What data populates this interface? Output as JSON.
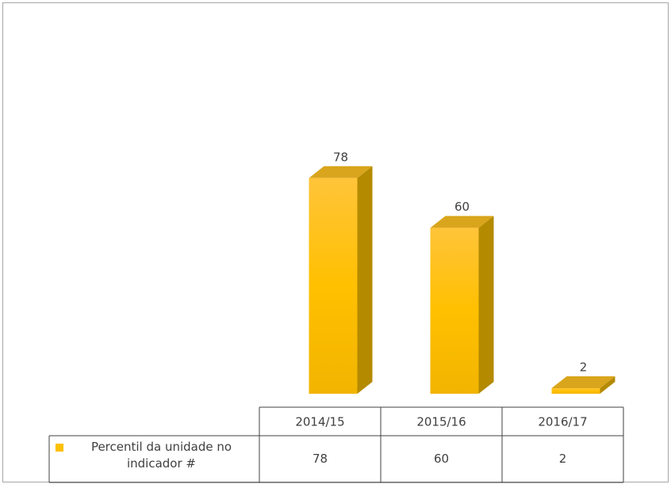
{
  "chart_data": {
    "type": "bar3d",
    "categories": [
      "2014/15",
      "2015/16",
      "2016/17"
    ],
    "series": [
      {
        "name": "Percentil da unidade no indicador #",
        "color": "#ffc000",
        "values": [
          78,
          60,
          2
        ]
      }
    ]
  }
}
